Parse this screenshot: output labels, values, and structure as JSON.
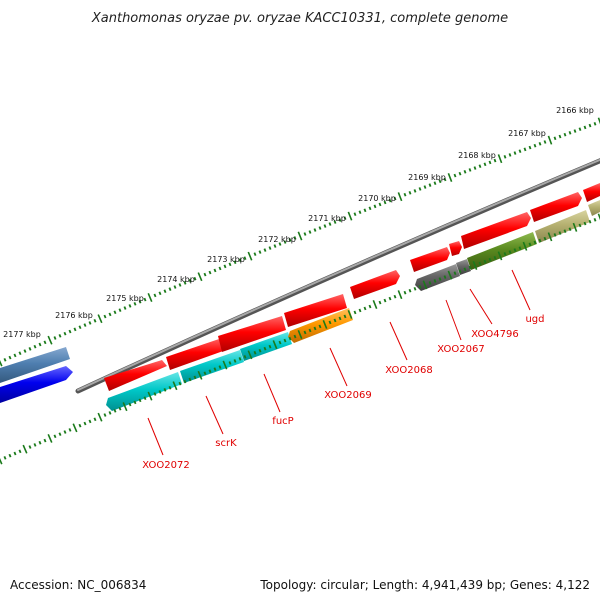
{
  "title": "Xanthomonas oryzae pv. oryzae KACC10331, complete genome",
  "footer": {
    "accession": "Accession: NC_006834",
    "topology": "Topology: circular; Length: 4,941,439 bp; Genes: 4,122"
  },
  "ticks": [
    "2166 kbp",
    "2167 kbp",
    "2168 kbp",
    "2169 kbp",
    "2170 kbp",
    "2171 kbp",
    "2172 kbp",
    "2173 kbp",
    "2174 kbp",
    "2175 kbp",
    "2176 kbp",
    "2177 kbp"
  ],
  "gene_labels": [
    "XOO2072",
    "scrK",
    "fucP",
    "XOO2069",
    "XOO2068",
    "XOO2067",
    "XOO4796",
    "ugd"
  ],
  "colors": {
    "forward_gene": "#ff0000",
    "cds_cyan": "#00c8c8",
    "cds_orange": "#ff9900",
    "cds_gray": "#666666",
    "cds_green": "#5a8a1f",
    "cds_khaki": "#b5b070",
    "cds_steel": "#4f7fb0",
    "cds_blue": "#0000ee",
    "tick_green": "#1a7a1a",
    "backbone": "#777777",
    "label_red": "#e00000"
  }
}
